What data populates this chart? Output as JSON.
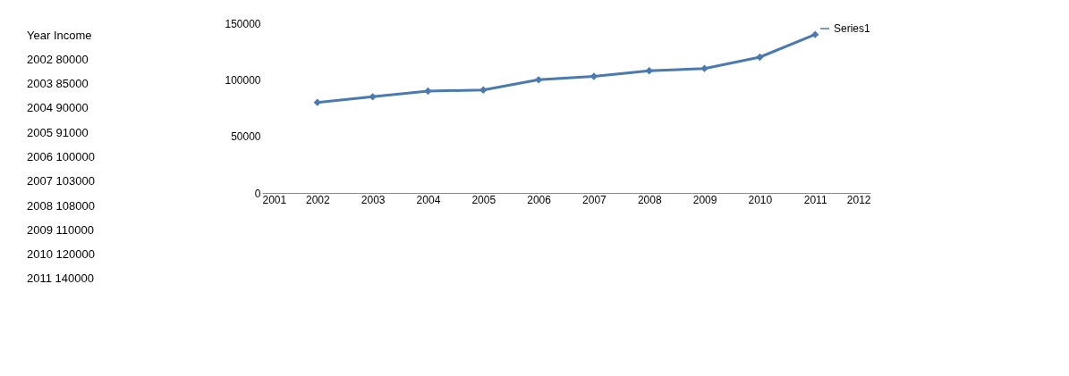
{
  "chart_data": [
    {
      "type": "other",
      "annotations": [
        "Year Income",
        "2002 80000",
        "2003 85000",
        "2004 90000",
        "2005 91000",
        "2006 100000",
        "2007 103000",
        "2008 108000",
        "2009 110000",
        "2010 120000",
        "2011 140000"
      ]
    },
    {
      "type": "line",
      "x": [
        2002,
        2003,
        2004,
        2005,
        2006,
        2007,
        2008,
        2009,
        2010,
        2011
      ],
      "series": [
        {
          "name": "Series1",
          "color": "#4a7ab0",
          "values": [
            80000,
            85000,
            90000,
            91000,
            100000,
            103000,
            108000,
            110000,
            120000,
            140000
          ]
        }
      ],
      "xlim": [
        2001,
        2012
      ],
      "xticks": [
        2001,
        2002,
        2003,
        2004,
        2005,
        2006,
        2007,
        2008,
        2009,
        2010,
        2011,
        2012
      ],
      "ylim": [
        0,
        150000
      ],
      "yticks": [
        0,
        50000,
        100000,
        150000
      ],
      "grid": false,
      "legend": "top right",
      "marker": "diamond",
      "line_style": "solid"
    }
  ]
}
